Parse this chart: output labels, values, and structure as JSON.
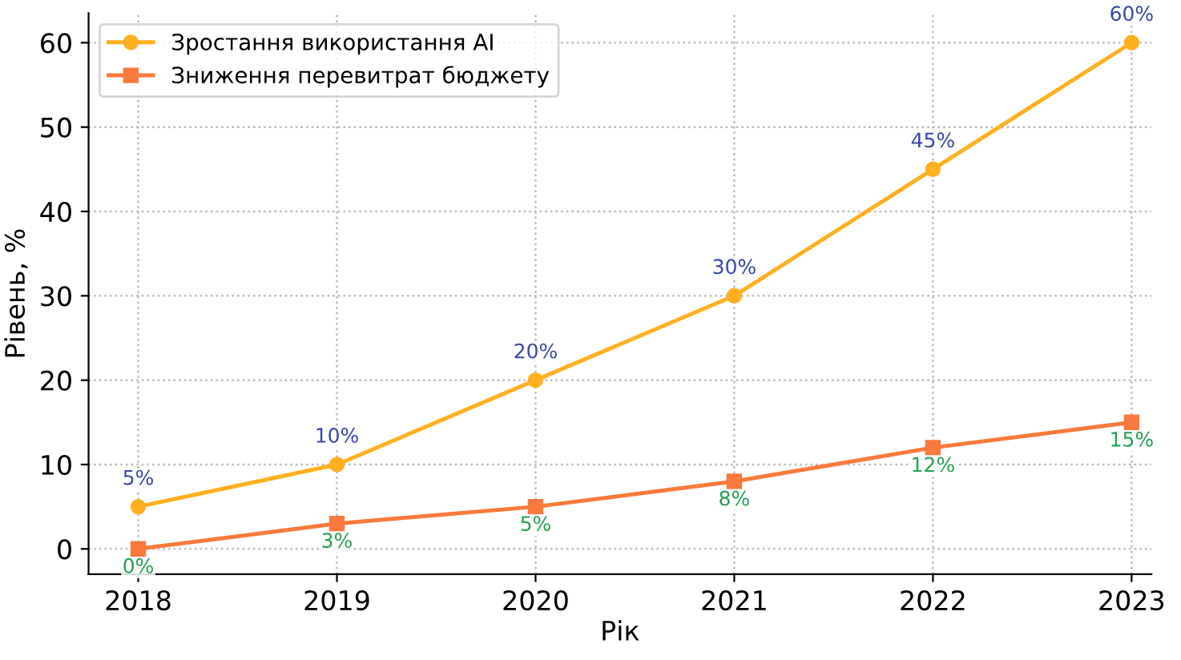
{
  "chart_data": {
    "type": "line",
    "xlabel": "Рік",
    "ylabel": "Рівень, %",
    "categories": [
      "2018",
      "2019",
      "2020",
      "2021",
      "2022",
      "2023"
    ],
    "series": [
      {
        "name": "Зростання використання AI",
        "color": "#ffb020",
        "marker": "circle",
        "values": [
          5,
          10,
          20,
          30,
          45,
          60
        ],
        "value_labels": [
          "5%",
          "10%",
          "20%",
          "30%",
          "45%",
          "60%"
        ]
      },
      {
        "name": "Зниження перевитрат бюджету",
        "color": "#f97a3c",
        "marker": "square",
        "values": [
          0,
          3,
          5,
          8,
          12,
          15
        ],
        "value_labels": [
          "0%",
          "3%",
          "5%",
          "8%",
          "12%",
          "15%"
        ]
      }
    ],
    "ylim": [
      -3,
      63.5
    ],
    "yticks": [
      0,
      10,
      20,
      30,
      40,
      50,
      60
    ],
    "grid": true,
    "legend": "top left",
    "line_style": "solid"
  }
}
